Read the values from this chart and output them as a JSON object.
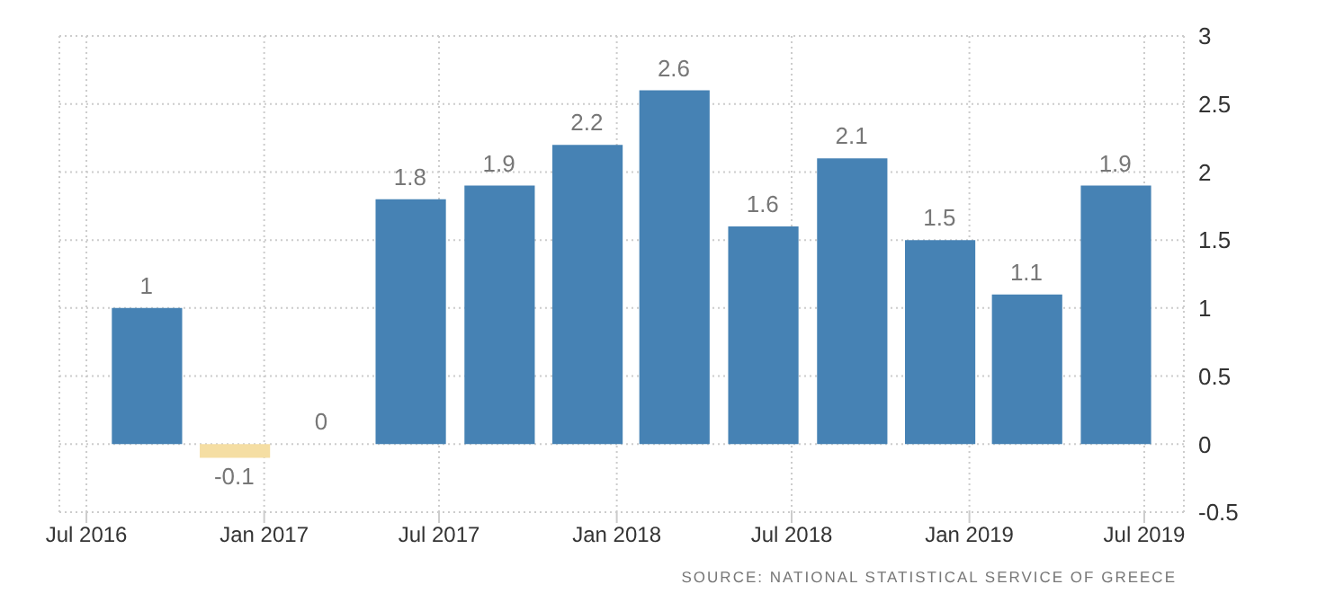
{
  "chart_data": {
    "type": "bar",
    "x": [
      "2016-09",
      "2016-12",
      "2017-03",
      "2017-06",
      "2017-09",
      "2017-12",
      "2018-03",
      "2018-06",
      "2018-09",
      "2018-12",
      "2019-03",
      "2019-06"
    ],
    "values": [
      1,
      -0.1,
      0,
      1.8,
      1.9,
      2.2,
      2.6,
      1.6,
      2.1,
      1.5,
      1.1,
      1.9
    ],
    "colors": [
      "#4682b4",
      "#f5dea3",
      "#4682b4",
      "#4682b4",
      "#4682b4",
      "#4682b4",
      "#4682b4",
      "#4682b4",
      "#4682b4",
      "#4682b4",
      "#4682b4",
      "#4682b4"
    ],
    "data_labels": true,
    "xlim": [
      "2016-06-03",
      "2019-08-11"
    ],
    "xticks": [
      {
        "value": "2016-07",
        "label": "Jul 2016"
      },
      {
        "value": "2017-01",
        "label": "Jan 2017"
      },
      {
        "value": "2017-07",
        "label": "Jul 2017"
      },
      {
        "value": "2018-01",
        "label": "Jan 2018"
      },
      {
        "value": "2018-07",
        "label": "Jul 2018"
      },
      {
        "value": "2019-01",
        "label": "Jan 2019"
      },
      {
        "value": "2019-07",
        "label": "Jul 2019"
      }
    ],
    "ylim": [
      -0.5,
      3
    ],
    "yticks": [
      -0.5,
      0,
      0.5,
      1,
      1.5,
      2,
      2.5,
      3
    ],
    "grid": true,
    "annotations": [
      "SOURCE: NATIONAL STATISTICAL SERVICE OF GREECE"
    ]
  }
}
